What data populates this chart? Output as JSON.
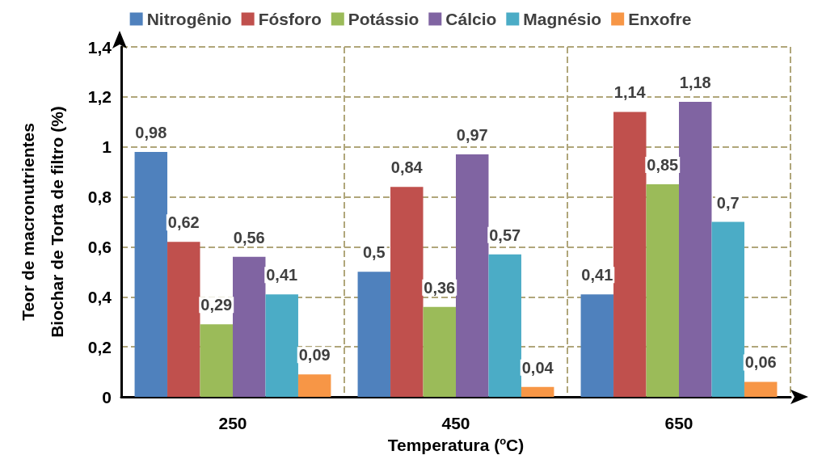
{
  "chart_data": {
    "type": "bar",
    "xlabel": "Temperatura ($^{o}$C)",
    "ylabel": "Teor de macronutrientes\nBiochar de Torta de filtro (%)",
    "categories": [
      "250",
      "450",
      "650"
    ],
    "series": [
      {
        "name": "Nitrogênio",
        "color": "#4f81bd",
        "values": [
          0.98,
          0.5,
          0.41
        ],
        "value_labels": [
          "0,98",
          "0,5",
          "0,41"
        ]
      },
      {
        "name": "Fósforo",
        "color": "#c0504d",
        "values": [
          0.62,
          0.84,
          1.14
        ],
        "value_labels": [
          "0,62",
          "0,84",
          "1,14"
        ]
      },
      {
        "name": "Potássio",
        "color": "#9bbb59",
        "values": [
          0.29,
          0.36,
          0.85
        ],
        "value_labels": [
          "0,29",
          "0,36",
          "0,85"
        ]
      },
      {
        "name": "Cálcio",
        "color": "#8064a2",
        "values": [
          0.56,
          0.97,
          1.18
        ],
        "value_labels": [
          "0,56",
          "0,97",
          "1,18"
        ]
      },
      {
        "name": "Magnésio",
        "color": "#4bacc6",
        "values": [
          0.41,
          0.57,
          0.7
        ],
        "value_labels": [
          "0,41",
          "0,57",
          "0,7"
        ]
      },
      {
        "name": "Enxofre",
        "color": "#f79646",
        "values": [
          0.09,
          0.04,
          0.06
        ],
        "value_labels": [
          "0,09",
          "0,04",
          "0,06"
        ]
      }
    ],
    "ylim": [
      0,
      1.4
    ],
    "yticks": [
      0,
      {
        "value": 0.2,
        "label": "0,2"
      },
      {
        "value": 0.4,
        "label": "0,4"
      },
      {
        "value": 0.6,
        "label": "0,6"
      },
      {
        "value": 0.8,
        "label": "0,8"
      },
      1,
      {
        "value": 1.2,
        "label": "1,2"
      },
      {
        "value": 1.4,
        "label": "1,4"
      }
    ],
    "grid": true,
    "legend": "top"
  }
}
